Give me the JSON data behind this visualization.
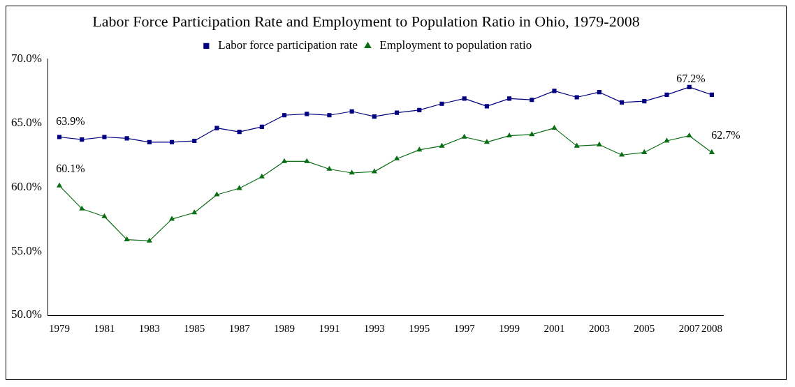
{
  "chart_data": {
    "type": "line",
    "title": "Labor Force Participation Rate and Employment to Population Ratio in Ohio, 1979-2008",
    "categories": [
      "1979",
      null,
      "1981",
      null,
      "1983",
      null,
      "1985",
      null,
      "1987",
      null,
      "1989",
      null,
      "1991",
      null,
      "1993",
      null,
      "1995",
      null,
      "1997",
      null,
      "1999",
      null,
      "2001",
      null,
      "2003",
      null,
      "2005",
      null,
      "2007",
      "2008"
    ],
    "series": [
      {
        "name": "Labor force participation rate",
        "color": "#000080",
        "marker": "square",
        "values": [
          63.9,
          63.7,
          63.9,
          63.8,
          63.5,
          63.5,
          63.6,
          64.6,
          64.3,
          64.7,
          65.6,
          65.7,
          65.6,
          65.9,
          65.5,
          65.8,
          66.0,
          66.5,
          66.9,
          66.3,
          66.9,
          66.8,
          67.5,
          67.0,
          67.4,
          66.6,
          66.7,
          67.2,
          67.8,
          67.2
        ],
        "value_labels": [
          "63.9%",
          null,
          null,
          null,
          null,
          null,
          null,
          null,
          null,
          null,
          null,
          null,
          null,
          null,
          null,
          null,
          null,
          null,
          null,
          null,
          null,
          null,
          null,
          null,
          null,
          null,
          null,
          null,
          null,
          "67.2%"
        ]
      },
      {
        "name": "Employment to population ratio",
        "color": "#0a6e14",
        "marker": "triangle",
        "values": [
          60.1,
          58.3,
          57.7,
          55.9,
          55.8,
          57.5,
          58.0,
          59.4,
          59.9,
          60.8,
          62.0,
          62.0,
          61.4,
          61.1,
          61.2,
          62.2,
          62.9,
          63.2,
          63.9,
          63.5,
          64.0,
          64.1,
          64.6,
          63.2,
          63.3,
          62.5,
          62.7,
          63.6,
          64.0,
          62.7
        ],
        "value_labels": [
          "60.1%",
          null,
          null,
          null,
          null,
          null,
          null,
          null,
          null,
          null,
          null,
          null,
          null,
          null,
          null,
          null,
          null,
          null,
          null,
          null,
          null,
          null,
          null,
          null,
          null,
          null,
          null,
          null,
          null,
          "62.7%"
        ]
      }
    ],
    "ylim": [
      50,
      70
    ],
    "yticks": [
      {
        "value": 50,
        "label": "50.0%"
      },
      {
        "value": 55,
        "label": "55.0%"
      },
      {
        "value": 60,
        "label": "60.0%"
      },
      {
        "value": 65,
        "label": "65.0%"
      },
      {
        "value": 70,
        "label": "70.0%"
      }
    ],
    "grid": false,
    "legend": "top"
  }
}
